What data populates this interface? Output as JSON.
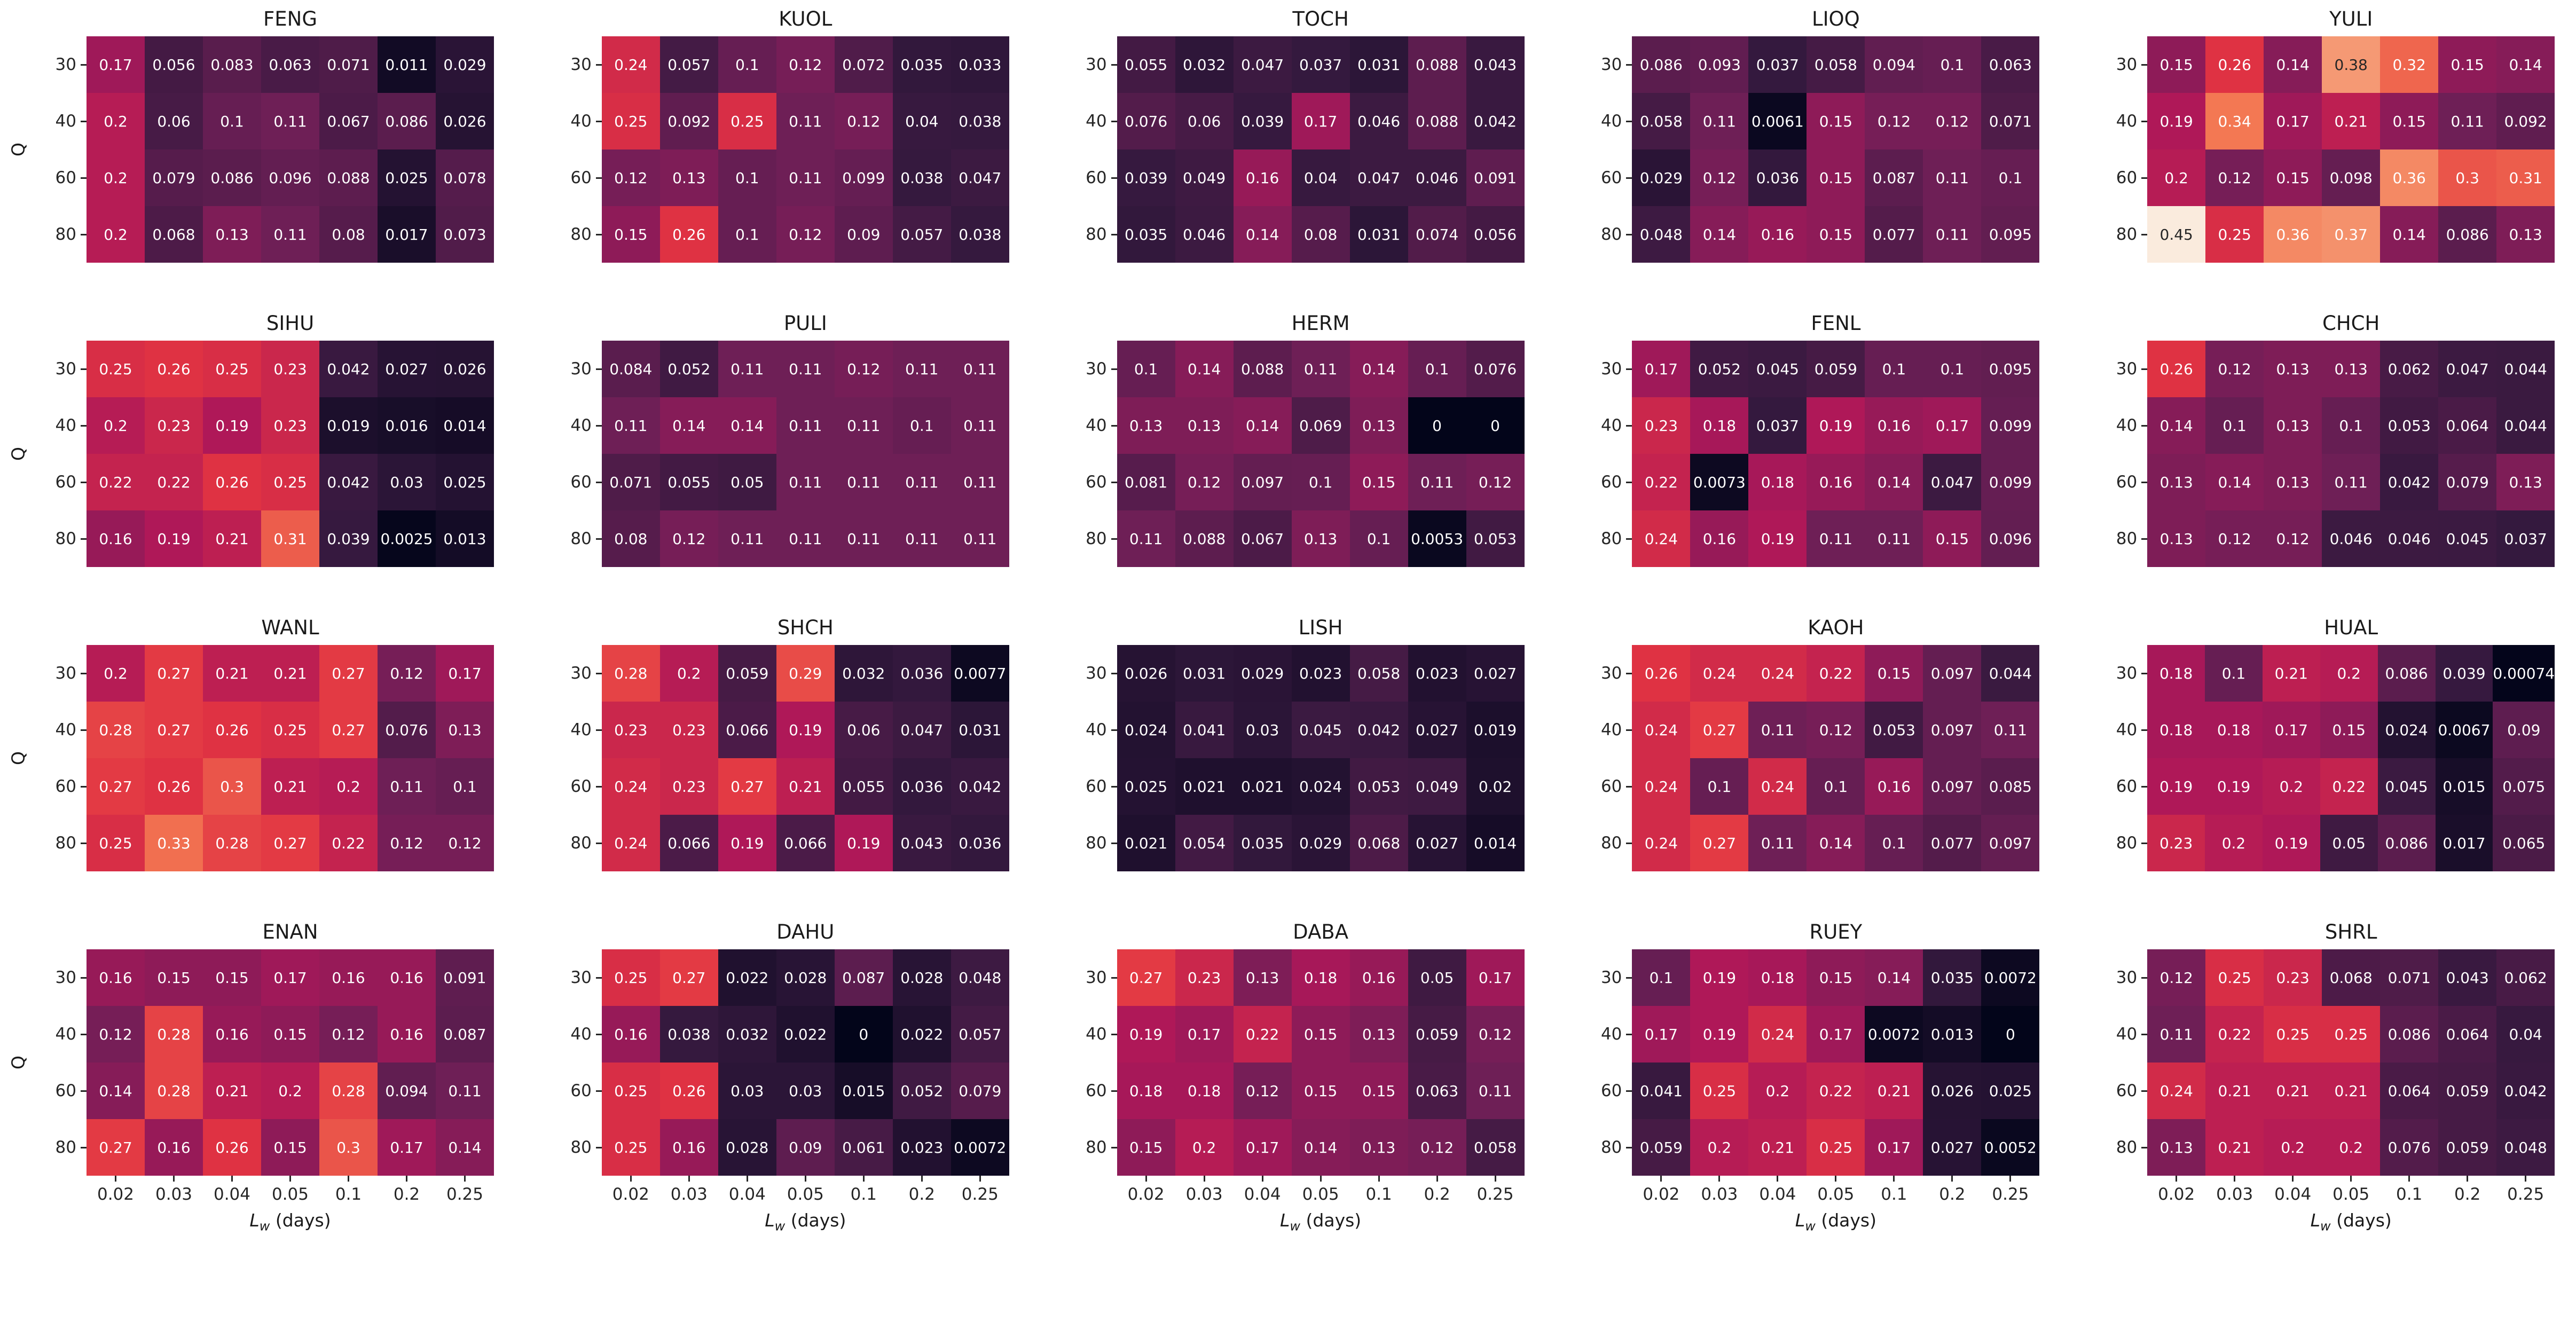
{
  "figure": {
    "background": "#ffffff",
    "ylabel": "Q",
    "xlabel": {
      "main": "L",
      "sub": "w",
      "rest": " (days)"
    }
  },
  "colormap": {
    "name": "rocket",
    "vmin": 0,
    "vmax": 0.45,
    "anchors": [
      {
        "t": 0.0,
        "hex": "#03051A"
      },
      {
        "t": 0.0833,
        "hex": "#35193E"
      },
      {
        "t": 0.25,
        "hex": "#701F57"
      },
      {
        "t": 0.4167,
        "hex": "#AD1759"
      },
      {
        "t": 0.5833,
        "hex": "#E13342"
      },
      {
        "t": 0.75,
        "hex": "#F37651"
      },
      {
        "t": 0.9167,
        "hex": "#F6B48F"
      },
      {
        "t": 1.0,
        "hex": "#FAEBDD"
      }
    ],
    "luminance_threshold": 0.408,
    "annot_dark_color": "#262626",
    "annot_light_color": "#FFFFFF"
  },
  "chart_data": {
    "type": "heatmap",
    "layout": "4 rows x 5 columns of subplots",
    "colormap": "rocket",
    "vmin": 0,
    "vmax": 0.45,
    "x_categories": [
      "0.02",
      "0.03",
      "0.04",
      "0.05",
      "0.1",
      "0.2",
      "0.25"
    ],
    "y_categories": [
      "30",
      "40",
      "60",
      "80"
    ],
    "xlabel": "L_w (days)",
    "ylabel": "Q",
    "annotation_format": "2 significant figures",
    "heatmaps": [
      {
        "title": "FENG",
        "values": [
          [
            "0.17",
            "0.056",
            "0.083",
            "0.063",
            "0.071",
            "0.011",
            "0.029"
          ],
          [
            "0.2",
            "0.06",
            "0.1",
            "0.11",
            "0.067",
            "0.086",
            "0.026"
          ],
          [
            "0.2",
            "0.079",
            "0.086",
            "0.096",
            "0.088",
            "0.025",
            "0.078"
          ],
          [
            "0.2",
            "0.068",
            "0.13",
            "0.11",
            "0.08",
            "0.017",
            "0.073"
          ]
        ]
      },
      {
        "title": "KUOL",
        "values": [
          [
            "0.24",
            "0.057",
            "0.1",
            "0.12",
            "0.072",
            "0.035",
            "0.033"
          ],
          [
            "0.25",
            "0.092",
            "0.25",
            "0.11",
            "0.12",
            "0.04",
            "0.038"
          ],
          [
            "0.12",
            "0.13",
            "0.1",
            "0.11",
            "0.099",
            "0.038",
            "0.047"
          ],
          [
            "0.15",
            "0.26",
            "0.1",
            "0.12",
            "0.09",
            "0.057",
            "0.038"
          ]
        ]
      },
      {
        "title": "TOCH",
        "values": [
          [
            "0.055",
            "0.032",
            "0.047",
            "0.037",
            "0.031",
            "0.088",
            "0.043"
          ],
          [
            "0.076",
            "0.06",
            "0.039",
            "0.17",
            "0.046",
            "0.088",
            "0.042"
          ],
          [
            "0.039",
            "0.049",
            "0.16",
            "0.04",
            "0.047",
            "0.046",
            "0.091"
          ],
          [
            "0.035",
            "0.046",
            "0.14",
            "0.08",
            "0.031",
            "0.074",
            "0.056"
          ]
        ]
      },
      {
        "title": "LIOQ",
        "values": [
          [
            "0.086",
            "0.093",
            "0.037",
            "0.058",
            "0.094",
            "0.1",
            "0.063"
          ],
          [
            "0.058",
            "0.11",
            "0.0061",
            "0.15",
            "0.12",
            "0.12",
            "0.071"
          ],
          [
            "0.029",
            "0.12",
            "0.036",
            "0.15",
            "0.087",
            "0.11",
            "0.1"
          ],
          [
            "0.048",
            "0.14",
            "0.16",
            "0.15",
            "0.077",
            "0.11",
            "0.095"
          ]
        ]
      },
      {
        "title": "YULI",
        "values": [
          [
            "0.15",
            "0.26",
            "0.14",
            "0.38",
            "0.32",
            "0.15",
            "0.14"
          ],
          [
            "0.19",
            "0.34",
            "0.17",
            "0.21",
            "0.15",
            "0.11",
            "0.092"
          ],
          [
            "0.2",
            "0.12",
            "0.15",
            "0.098",
            "0.36",
            "0.3",
            "0.31"
          ],
          [
            "0.45",
            "0.25",
            "0.36",
            "0.37",
            "0.14",
            "0.086",
            "0.13"
          ]
        ]
      },
      {
        "title": "SIHU",
        "values": [
          [
            "0.25",
            "0.26",
            "0.25",
            "0.23",
            "0.042",
            "0.027",
            "0.026"
          ],
          [
            "0.2",
            "0.23",
            "0.19",
            "0.23",
            "0.019",
            "0.016",
            "0.014"
          ],
          [
            "0.22",
            "0.22",
            "0.26",
            "0.25",
            "0.042",
            "0.03",
            "0.025"
          ],
          [
            "0.16",
            "0.19",
            "0.21",
            "0.31",
            "0.039",
            "0.0025",
            "0.013"
          ]
        ]
      },
      {
        "title": "PULI",
        "values": [
          [
            "0.084",
            "0.052",
            "0.11",
            "0.11",
            "0.12",
            "0.11",
            "0.11"
          ],
          [
            "0.11",
            "0.14",
            "0.14",
            "0.11",
            "0.11",
            "0.1",
            "0.11"
          ],
          [
            "0.071",
            "0.055",
            "0.05",
            "0.11",
            "0.11",
            "0.11",
            "0.11"
          ],
          [
            "0.08",
            "0.12",
            "0.11",
            "0.11",
            "0.11",
            "0.11",
            "0.11"
          ]
        ]
      },
      {
        "title": "HERM",
        "values": [
          [
            "0.1",
            "0.14",
            "0.088",
            "0.11",
            "0.14",
            "0.1",
            "0.076"
          ],
          [
            "0.13",
            "0.13",
            "0.14",
            "0.069",
            "0.13",
            "0",
            "0"
          ],
          [
            "0.081",
            "0.12",
            "0.097",
            "0.1",
            "0.15",
            "0.11",
            "0.12"
          ],
          [
            "0.11",
            "0.088",
            "0.067",
            "0.13",
            "0.1",
            "0.0053",
            "0.053"
          ]
        ]
      },
      {
        "title": "FENL",
        "values": [
          [
            "0.17",
            "0.052",
            "0.045",
            "0.059",
            "0.1",
            "0.1",
            "0.095"
          ],
          [
            "0.23",
            "0.18",
            "0.037",
            "0.19",
            "0.16",
            "0.17",
            "0.099"
          ],
          [
            "0.22",
            "0.0073",
            "0.18",
            "0.16",
            "0.14",
            "0.047",
            "0.099"
          ],
          [
            "0.24",
            "0.16",
            "0.19",
            "0.11",
            "0.11",
            "0.15",
            "0.096"
          ]
        ]
      },
      {
        "title": "CHCH",
        "values": [
          [
            "0.26",
            "0.12",
            "0.13",
            "0.13",
            "0.062",
            "0.047",
            "0.044"
          ],
          [
            "0.14",
            "0.1",
            "0.13",
            "0.1",
            "0.053",
            "0.064",
            "0.044"
          ],
          [
            "0.13",
            "0.14",
            "0.13",
            "0.11",
            "0.042",
            "0.079",
            "0.13"
          ],
          [
            "0.13",
            "0.12",
            "0.12",
            "0.046",
            "0.046",
            "0.045",
            "0.037"
          ]
        ]
      },
      {
        "title": "WANL",
        "values": [
          [
            "0.2",
            "0.27",
            "0.21",
            "0.21",
            "0.27",
            "0.12",
            "0.17"
          ],
          [
            "0.28",
            "0.27",
            "0.26",
            "0.25",
            "0.27",
            "0.076",
            "0.13"
          ],
          [
            "0.27",
            "0.26",
            "0.3",
            "0.21",
            "0.2",
            "0.11",
            "0.1"
          ],
          [
            "0.25",
            "0.33",
            "0.28",
            "0.27",
            "0.22",
            "0.12",
            "0.12"
          ]
        ]
      },
      {
        "title": "SHCH",
        "values": [
          [
            "0.28",
            "0.2",
            "0.059",
            "0.29",
            "0.032",
            "0.036",
            "0.0077"
          ],
          [
            "0.23",
            "0.23",
            "0.066",
            "0.19",
            "0.06",
            "0.047",
            "0.031"
          ],
          [
            "0.24",
            "0.23",
            "0.27",
            "0.21",
            "0.055",
            "0.036",
            "0.042"
          ],
          [
            "0.24",
            "0.066",
            "0.19",
            "0.066",
            "0.19",
            "0.043",
            "0.036"
          ]
        ]
      },
      {
        "title": "LISH",
        "values": [
          [
            "0.026",
            "0.031",
            "0.029",
            "0.023",
            "0.058",
            "0.023",
            "0.027"
          ],
          [
            "0.024",
            "0.041",
            "0.03",
            "0.045",
            "0.042",
            "0.027",
            "0.019"
          ],
          [
            "0.025",
            "0.021",
            "0.021",
            "0.024",
            "0.053",
            "0.049",
            "0.02"
          ],
          [
            "0.021",
            "0.054",
            "0.035",
            "0.029",
            "0.068",
            "0.027",
            "0.014"
          ]
        ]
      },
      {
        "title": "KAOH",
        "values": [
          [
            "0.26",
            "0.24",
            "0.24",
            "0.22",
            "0.15",
            "0.097",
            "0.044"
          ],
          [
            "0.24",
            "0.27",
            "0.11",
            "0.12",
            "0.053",
            "0.097",
            "0.11"
          ],
          [
            "0.24",
            "0.1",
            "0.24",
            "0.1",
            "0.16",
            "0.097",
            "0.085"
          ],
          [
            "0.24",
            "0.27",
            "0.11",
            "0.14",
            "0.1",
            "0.077",
            "0.097"
          ]
        ]
      },
      {
        "title": "HUAL",
        "values": [
          [
            "0.18",
            "0.1",
            "0.21",
            "0.2",
            "0.086",
            "0.039",
            "0.00074"
          ],
          [
            "0.18",
            "0.18",
            "0.17",
            "0.15",
            "0.024",
            "0.0067",
            "0.09"
          ],
          [
            "0.19",
            "0.19",
            "0.2",
            "0.22",
            "0.045",
            "0.015",
            "0.075"
          ],
          [
            "0.23",
            "0.2",
            "0.19",
            "0.05",
            "0.086",
            "0.017",
            "0.065"
          ]
        ]
      },
      {
        "title": "ENAN",
        "values": [
          [
            "0.16",
            "0.15",
            "0.15",
            "0.17",
            "0.16",
            "0.16",
            "0.091"
          ],
          [
            "0.12",
            "0.28",
            "0.16",
            "0.15",
            "0.12",
            "0.16",
            "0.087"
          ],
          [
            "0.14",
            "0.28",
            "0.21",
            "0.2",
            "0.28",
            "0.094",
            "0.11"
          ],
          [
            "0.27",
            "0.16",
            "0.26",
            "0.15",
            "0.3",
            "0.17",
            "0.14"
          ]
        ]
      },
      {
        "title": "DAHU",
        "values": [
          [
            "0.25",
            "0.27",
            "0.022",
            "0.028",
            "0.087",
            "0.028",
            "0.048"
          ],
          [
            "0.16",
            "0.038",
            "0.032",
            "0.022",
            "0",
            "0.022",
            "0.057"
          ],
          [
            "0.25",
            "0.26",
            "0.03",
            "0.03",
            "0.015",
            "0.052",
            "0.079"
          ],
          [
            "0.25",
            "0.16",
            "0.028",
            "0.09",
            "0.061",
            "0.023",
            "0.0072"
          ]
        ]
      },
      {
        "title": "DABA",
        "values": [
          [
            "0.27",
            "0.23",
            "0.13",
            "0.18",
            "0.16",
            "0.05",
            "0.17"
          ],
          [
            "0.19",
            "0.17",
            "0.22",
            "0.15",
            "0.13",
            "0.059",
            "0.12"
          ],
          [
            "0.18",
            "0.18",
            "0.12",
            "0.15",
            "0.15",
            "0.063",
            "0.11"
          ],
          [
            "0.15",
            "0.2",
            "0.17",
            "0.14",
            "0.13",
            "0.12",
            "0.058"
          ]
        ]
      },
      {
        "title": "RUEY",
        "values": [
          [
            "0.1",
            "0.19",
            "0.18",
            "0.15",
            "0.14",
            "0.035",
            "0.0072"
          ],
          [
            "0.17",
            "0.19",
            "0.24",
            "0.17",
            "0.0072",
            "0.013",
            "0"
          ],
          [
            "0.041",
            "0.25",
            "0.2",
            "0.22",
            "0.21",
            "0.026",
            "0.025"
          ],
          [
            "0.059",
            "0.2",
            "0.21",
            "0.25",
            "0.17",
            "0.027",
            "0.0052"
          ]
        ]
      },
      {
        "title": "SHRL",
        "values": [
          [
            "0.12",
            "0.25",
            "0.23",
            "0.068",
            "0.071",
            "0.043",
            "0.062"
          ],
          [
            "0.11",
            "0.22",
            "0.25",
            "0.25",
            "0.086",
            "0.064",
            "0.04"
          ],
          [
            "0.24",
            "0.21",
            "0.21",
            "0.21",
            "0.064",
            "0.059",
            "0.042"
          ],
          [
            "0.13",
            "0.21",
            "0.2",
            "0.2",
            "0.076",
            "0.059",
            "0.048"
          ]
        ]
      }
    ]
  }
}
